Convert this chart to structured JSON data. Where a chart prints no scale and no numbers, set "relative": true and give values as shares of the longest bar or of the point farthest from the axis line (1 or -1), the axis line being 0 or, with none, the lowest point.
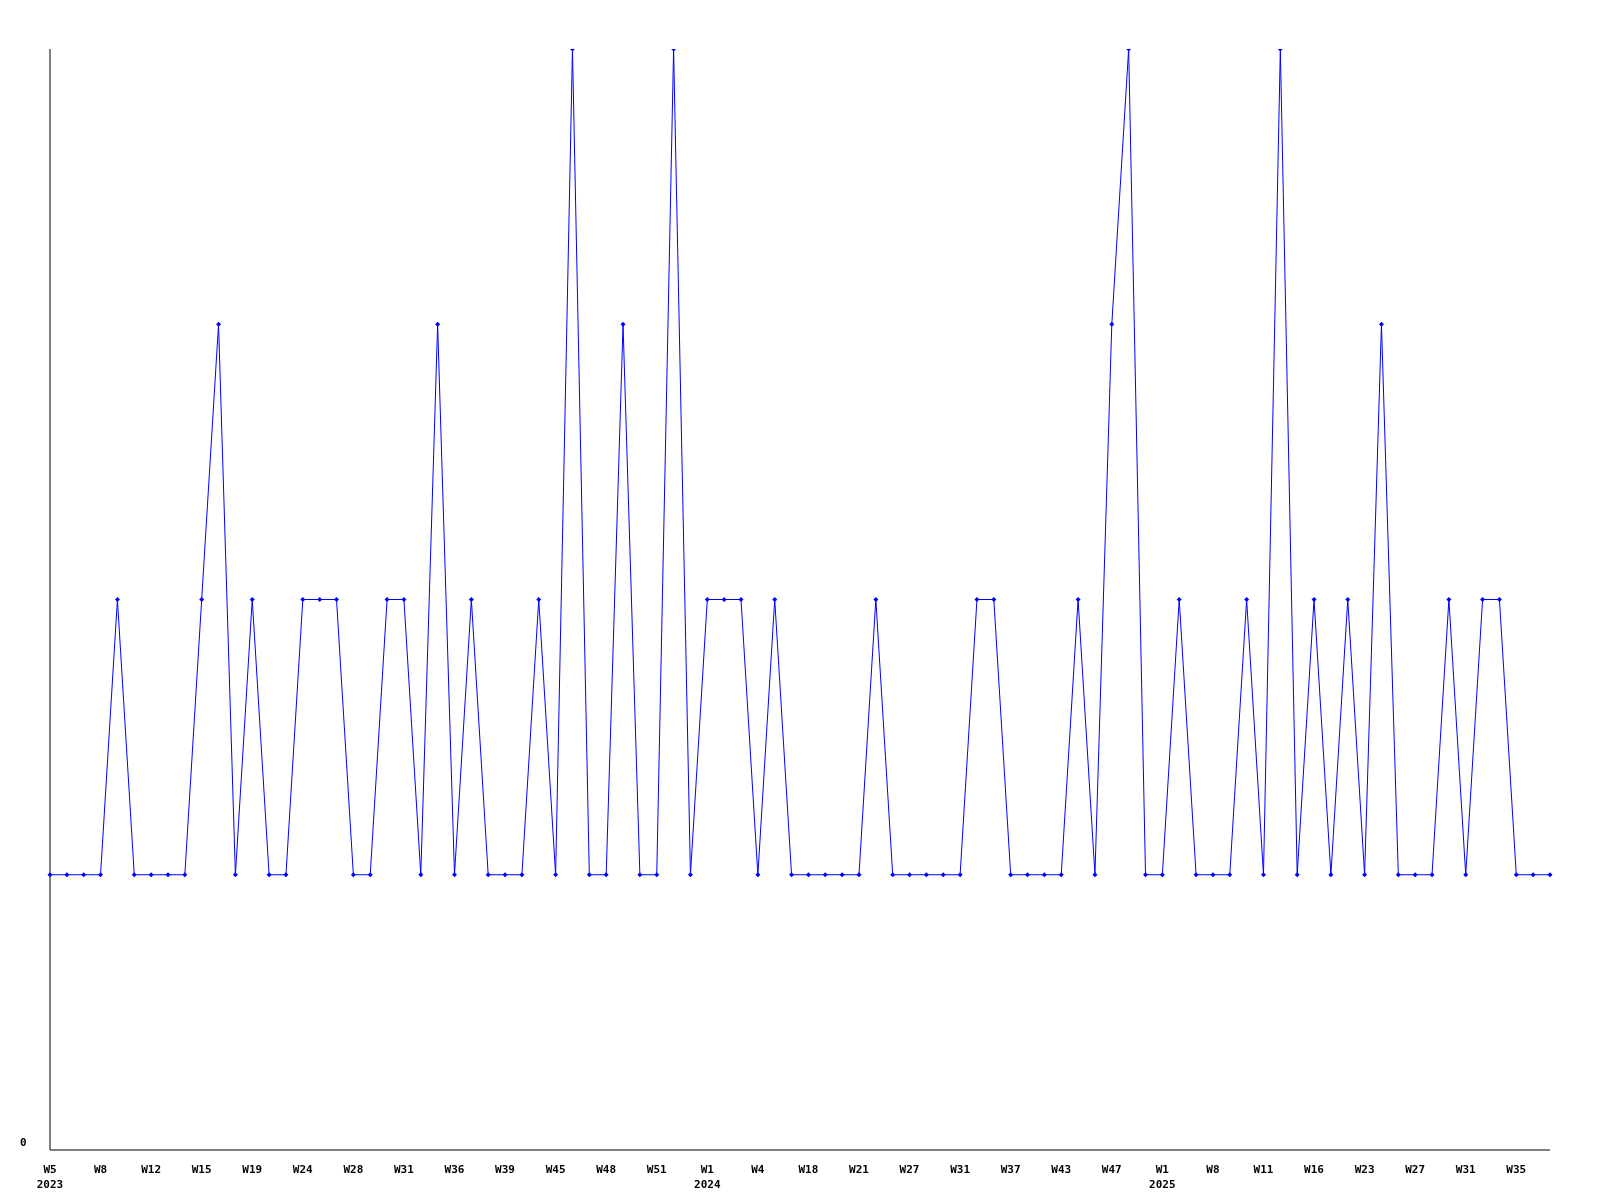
{
  "chart_data": {
    "type": "line",
    "relative": true,
    "marker": "diamond",
    "annotations": [
      "0"
    ],
    "categories": [
      "W5\n2023",
      null,
      null,
      "W8",
      null,
      null,
      "W12",
      null,
      null,
      "W15",
      null,
      null,
      "W19",
      null,
      null,
      "W24",
      null,
      null,
      "W28",
      null,
      null,
      "W31",
      null,
      null,
      "W36",
      null,
      null,
      "W39",
      null,
      null,
      "W45",
      null,
      null,
      "W48",
      null,
      null,
      "W51",
      null,
      null,
      "W1\n2024",
      null,
      null,
      "W4",
      null,
      null,
      "W18",
      null,
      null,
      "W21",
      null,
      null,
      "W27",
      null,
      null,
      "W31",
      null,
      null,
      "W37",
      null,
      null,
      "W43",
      null,
      null,
      "W47",
      null,
      null,
      "W1\n2025",
      null,
      null,
      "W8",
      null,
      null,
      "W11",
      null,
      null,
      "W16",
      null,
      null,
      "W23",
      null,
      null,
      "W27",
      null,
      null,
      "W31",
      null,
      null,
      "W35",
      null,
      null
    ],
    "series": [
      {
        "color": "#0000ff",
        "values": [
          0.25,
          0.25,
          0.25,
          0.25,
          0.5,
          0.25,
          0.25,
          0.25,
          0.25,
          0.5,
          0.75,
          0.25,
          0.5,
          0.25,
          0.25,
          0.5,
          0.5,
          0.5,
          0.25,
          0.25,
          0.5,
          0.5,
          0.25,
          0.75,
          0.25,
          0.5,
          0.25,
          0.25,
          0.25,
          0.5,
          0.25,
          1,
          0.25,
          0.25,
          0.75,
          0.25,
          0.25,
          1,
          0.25,
          0.5,
          0.5,
          0.5,
          0.25,
          0.5,
          0.25,
          0.25,
          0.25,
          0.25,
          0.25,
          0.5,
          0.25,
          0.25,
          0.25,
          0.25,
          0.25,
          0.5,
          0.5,
          0.25,
          0.25,
          0.25,
          0.25,
          0.5,
          0.25,
          0.75,
          1,
          0.25,
          0.25,
          0.5,
          0.25,
          0.25,
          0.25,
          0.5,
          0.25,
          1,
          0.25,
          0.5,
          0.25,
          0.5,
          0.25,
          0.75,
          0.25,
          0.25,
          0.25,
          0.5,
          0.25,
          0.5,
          0.5,
          0.25,
          0.25,
          0.25
        ]
      }
    ]
  }
}
